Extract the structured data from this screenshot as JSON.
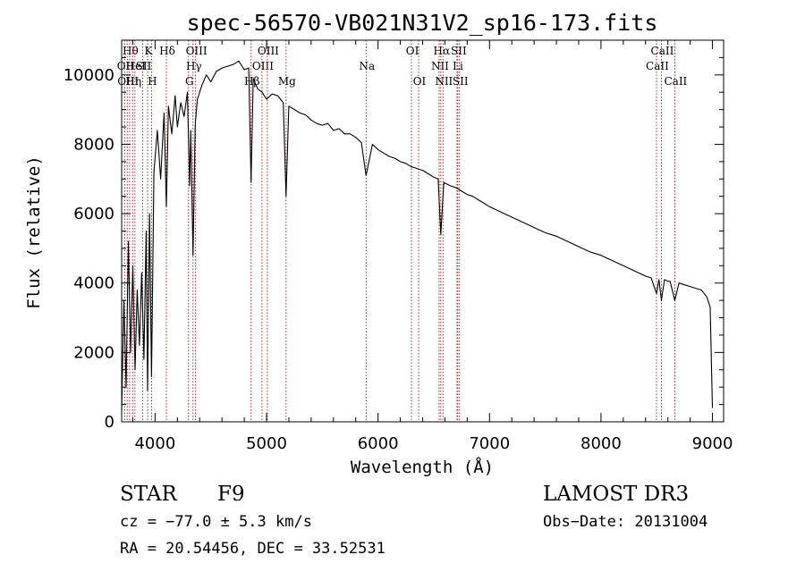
{
  "chart_data": {
    "type": "line",
    "title": "spec-56570-VB021N31V2_sp16-173.fits",
    "xlabel": "Wavelength (Å)",
    "ylabel": "Flux (relative)",
    "xlim": [
      3700,
      9100
    ],
    "ylim": [
      0,
      11000
    ],
    "x_ticks": [
      4000,
      5000,
      6000,
      7000,
      8000,
      9000
    ],
    "y_ticks": [
      0,
      2000,
      4000,
      6000,
      8000,
      10000
    ],
    "grid": false,
    "series": [
      {
        "name": "spectrum",
        "x": [
          3700,
          3720,
          3740,
          3760,
          3780,
          3800,
          3820,
          3840,
          3860,
          3880,
          3900,
          3920,
          3933,
          3950,
          3968,
          3990,
          4020,
          4050,
          4080,
          4101,
          4120,
          4150,
          4180,
          4200,
          4230,
          4260,
          4290,
          4310,
          4320,
          4340,
          4360,
          4380,
          4420,
          4460,
          4500,
          4550,
          4600,
          4650,
          4700,
          4750,
          4800,
          4840,
          4861,
          4880,
          4920,
          4960,
          5000,
          5050,
          5100,
          5150,
          5175,
          5200,
          5250,
          5300,
          5350,
          5400,
          5450,
          5500,
          5550,
          5600,
          5650,
          5700,
          5750,
          5800,
          5850,
          5893,
          5950,
          6000,
          6050,
          6100,
          6150,
          6200,
          6250,
          6300,
          6350,
          6400,
          6450,
          6500,
          6540,
          6563,
          6590,
          6650,
          6700,
          6750,
          6800,
          6850,
          6900,
          6950,
          7000,
          7100,
          7200,
          7300,
          7400,
          7500,
          7600,
          7700,
          7800,
          7900,
          8000,
          8100,
          8200,
          8300,
          8400,
          8450,
          8498,
          8520,
          8542,
          8570,
          8600,
          8620,
          8662,
          8700,
          8750,
          8800,
          8850,
          8900,
          8950,
          8980,
          9000
        ],
        "y": [
          300,
          3500,
          1000,
          5200,
          2000,
          4500,
          1500,
          3800,
          2200,
          4300,
          1800,
          5500,
          900,
          6000,
          1300,
          7200,
          8400,
          7000,
          8900,
          6200,
          9100,
          8300,
          9400,
          8500,
          9200,
          8800,
          9500,
          6800,
          8400,
          4800,
          8600,
          9300,
          9700,
          10000,
          9800,
          10100,
          10200,
          10250,
          10300,
          10400,
          10150,
          10200,
          6900,
          9900,
          9600,
          9500,
          9300,
          9450,
          9400,
          9200,
          6500,
          9100,
          9000,
          8900,
          8850,
          8700,
          8600,
          8550,
          8600,
          8400,
          8450,
          8300,
          8300,
          8200,
          8050,
          7100,
          8000,
          7850,
          7750,
          7650,
          7600,
          7500,
          7450,
          7350,
          7300,
          7250,
          7150,
          7050,
          7000,
          5400,
          6900,
          6800,
          6750,
          6650,
          6550,
          6500,
          6400,
          6300,
          6200,
          6050,
          5900,
          5750,
          5600,
          5450,
          5350,
          5200,
          5050,
          4900,
          4800,
          4650,
          4500,
          4350,
          4200,
          4150,
          3700,
          4100,
          3500,
          4100,
          4050,
          4050,
          3500,
          4000,
          3950,
          3900,
          3850,
          3800,
          3600,
          3300,
          400
        ]
      }
    ],
    "line_markers": [
      {
        "wavelength": 3727,
        "label": "OII",
        "row": 2
      },
      {
        "wavelength": 3750,
        "label": "OIII",
        "row": 3
      },
      {
        "wavelength": 3771,
        "label": "Hθ",
        "row": 1
      },
      {
        "wavelength": 3798,
        "label": "Hη",
        "row": 3
      },
      {
        "wavelength": 3819,
        "label": "HeI",
        "row": 2
      },
      {
        "wavelength": 3889,
        "label": "SII",
        "row": 2
      },
      {
        "wavelength": 3933,
        "label": "K",
        "row": 1
      },
      {
        "wavelength": 3968,
        "label": "H",
        "row": 3
      },
      {
        "wavelength": 4101,
        "label": "Hδ",
        "row": 1
      },
      {
        "wavelength": 4300,
        "label": "G",
        "row": 3
      },
      {
        "wavelength": 4340,
        "label": "Hγ",
        "row": 2
      },
      {
        "wavelength": 4363,
        "label": "OIII",
        "row": 1
      },
      {
        "wavelength": 4861,
        "label": "Hβ",
        "row": 3
      },
      {
        "wavelength": 4959,
        "label": "OIII",
        "row": 2
      },
      {
        "wavelength": 5007,
        "label": "OIII",
        "row": 1
      },
      {
        "wavelength": 5175,
        "label": "Mg",
        "row": 3
      },
      {
        "wavelength": 5893,
        "label": "Na",
        "row": 2
      },
      {
        "wavelength": 6300,
        "label": "OI",
        "row": 1
      },
      {
        "wavelength": 6364,
        "label": "OI",
        "row": 3
      },
      {
        "wavelength": 6548,
        "label": "NII",
        "row": 2
      },
      {
        "wavelength": 6563,
        "label": "Hα",
        "row": 1
      },
      {
        "wavelength": 6583,
        "label": "NII",
        "row": 3
      },
      {
        "wavelength": 6708,
        "label": "Li",
        "row": 2
      },
      {
        "wavelength": 6716,
        "label": "SII",
        "row": 1
      },
      {
        "wavelength": 6731,
        "label": "SII",
        "row": 3
      },
      {
        "wavelength": 8498,
        "label": "CaII",
        "row": 2
      },
      {
        "wavelength": 8542,
        "label": "CaII",
        "row": 1
      },
      {
        "wavelength": 8662,
        "label": "CaII",
        "row": 3
      }
    ],
    "colors": {
      "line": "#000000",
      "marker": "#aa1111",
      "axis": "#000000"
    }
  },
  "info": {
    "class_label": "STAR",
    "subclass": "F9",
    "survey": "LAMOST DR3",
    "redshift": "cz = −77.0 ± 5.3 km/s",
    "obs_date": "Obs−Date: 20131004",
    "coords": "RA =  20.54456, DEC =  33.52531"
  }
}
